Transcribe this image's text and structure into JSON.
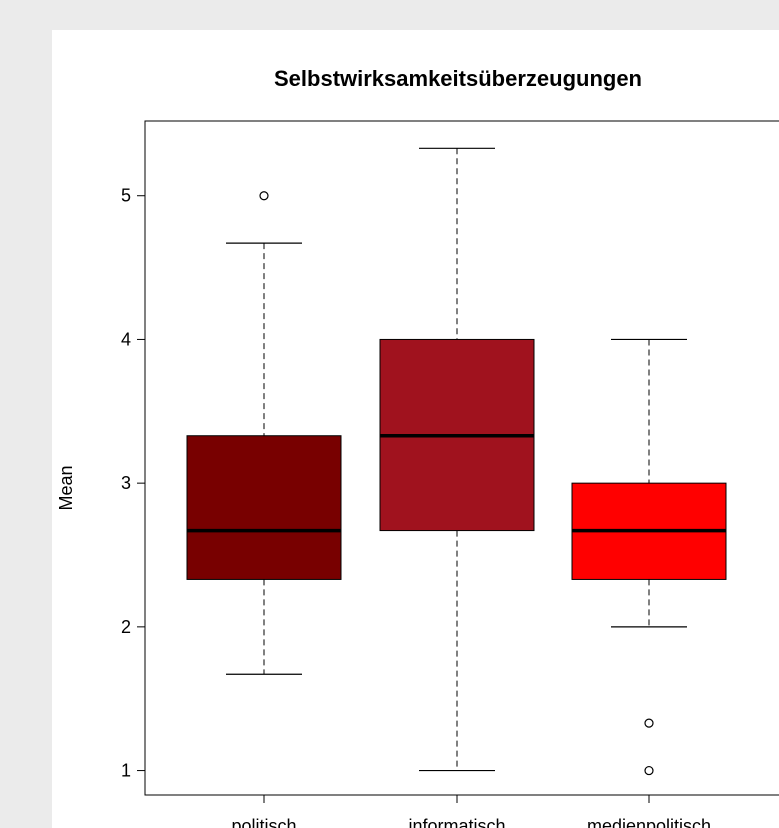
{
  "chart_data": {
    "type": "box",
    "title": "Selbstwirksamkeitsüberzeugungen",
    "xlabel": "",
    "ylabel": "Mean",
    "ylim": [
      0.83,
      5.52
    ],
    "yticks": [
      1,
      2,
      3,
      4,
      5
    ],
    "grid": false,
    "categories": [
      "politisch",
      "informatisch",
      "medienpolitisch"
    ],
    "boxes": [
      {
        "category": "politisch",
        "whisker_low": 1.67,
        "q1": 2.33,
        "median": 2.67,
        "q3": 3.33,
        "whisker_high": 4.67,
        "outliers": [
          5.0
        ],
        "color": "#780000"
      },
      {
        "category": "informatisch",
        "whisker_low": 1.0,
        "q1": 2.67,
        "median": 3.33,
        "q3": 4.0,
        "whisker_high": 5.33,
        "outliers": [],
        "color": "#a0121e"
      },
      {
        "category": "medienpolitisch",
        "whisker_low": 2.0,
        "q1": 2.33,
        "median": 2.67,
        "q3": 3.0,
        "whisker_high": 4.0,
        "outliers": [
          1.0,
          1.33
        ],
        "color": "#ff0000"
      }
    ]
  }
}
